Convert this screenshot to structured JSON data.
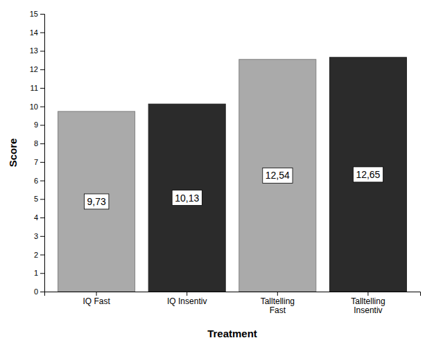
{
  "chart_data": {
    "type": "bar",
    "categories": [
      "IQ Fast",
      "IQ Insentiv",
      "Talltelling\nFast",
      "Talltelling\nInsentiv"
    ],
    "values": [
      9.73,
      10.13,
      12.54,
      12.65
    ],
    "value_labels": [
      "9,73",
      "10,13",
      "12,54",
      "12,65"
    ],
    "data_labels": true,
    "colors": [
      "#aaaaaa",
      "#2b2b2b",
      "#aaaaaa",
      "#2b2b2b"
    ],
    "xlabel": "Treatment",
    "ylabel": "Score",
    "ylim": [
      0,
      15
    ],
    "yticks": [
      0,
      1,
      2,
      3,
      4,
      5,
      6,
      7,
      8,
      9,
      10,
      11,
      12,
      13,
      14,
      15
    ],
    "grid": false
  }
}
